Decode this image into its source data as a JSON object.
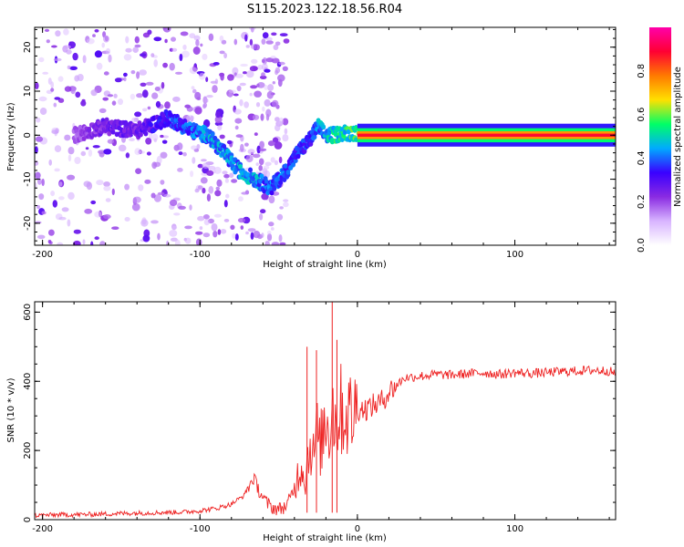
{
  "figure_title": "S115.2023.122.18.56.R04",
  "colormap": [
    "#ffffff",
    "#d8b4ff",
    "#8a2be2",
    "#3a00ff",
    "#00aaff",
    "#00ff66",
    "#ffe000",
    "#ff7a00",
    "#ff0033",
    "#ff00aa"
  ],
  "line_color": "#ee2222",
  "chart_data": [
    {
      "type": "heatmap",
      "title": "",
      "xlabel": "Height of straight line (km)",
      "ylabel": "Frequency (Hz)",
      "xlim": [
        -205,
        164
      ],
      "ylim": [
        -25,
        24.5
      ],
      "x_ticks": [
        -200,
        -100,
        0,
        100
      ],
      "y_ticks": [
        -20,
        -10,
        0,
        10,
        20
      ],
      "colorbar": {
        "label": "Normalized spectral amplitude",
        "range": [
          0.0,
          1.0
        ],
        "ticks": [
          "0.0",
          "0.2",
          "0.4",
          "0.6",
          "0.8"
        ]
      },
      "ridge": {
        "x": [
          -205,
          -180,
          -160,
          -140,
          -120,
          -105,
          -95,
          -85,
          -75,
          -65,
          -55,
          -45,
          -38,
          -30,
          -25,
          -20,
          -15,
          -10,
          -5,
          0,
          10,
          50,
          100,
          164
        ],
        "y": [
          -2,
          0,
          2,
          1,
          4,
          1,
          0,
          -4,
          -8,
          -10,
          -12,
          -8,
          -4,
          -1,
          2,
          0,
          0,
          0.5,
          0.5,
          0.5,
          0,
          0,
          0,
          0
        ],
        "peak": [
          0.2,
          0.2,
          0.3,
          0.3,
          0.4,
          0.45,
          0.5,
          0.5,
          0.5,
          0.5,
          0.45,
          0.45,
          0.4,
          0.4,
          0.5,
          0.5,
          0.6,
          0.6,
          0.6,
          0.65,
          0.8,
          0.85,
          0.88,
          0.75
        ]
      }
    },
    {
      "type": "line",
      "title": "",
      "xlabel": "Height of straight line (km)",
      "ylabel": "SNR (10 * v/v)",
      "xlim": [
        -205,
        164
      ],
      "ylim": [
        0,
        630
      ],
      "x_ticks": [
        -200,
        -100,
        0,
        100
      ],
      "y_ticks": [
        0,
        200,
        400,
        600
      ],
      "series": [
        {
          "x": [
            -205,
            -190,
            -170,
            -150,
            -130,
            -110,
            -100,
            -90,
            -80,
            -72,
            -66,
            -62,
            -58,
            -54,
            -50,
            -45,
            -40,
            -36,
            -33,
            -30,
            -28,
            -26,
            -24,
            -22,
            -20,
            -18,
            -16,
            -14,
            -12,
            -10,
            -8,
            -6,
            -4,
            -2,
            0,
            5,
            10,
            15,
            20,
            25,
            30,
            40,
            50,
            60,
            70,
            80,
            90,
            100,
            110,
            120,
            130,
            140,
            150,
            160,
            164
          ],
          "values": [
            12,
            14,
            15,
            18,
            20,
            22,
            26,
            32,
            45,
            70,
            120,
            80,
            50,
            35,
            30,
            40,
            90,
            160,
            120,
            230,
            180,
            260,
            210,
            240,
            300,
            260,
            350,
            280,
            300,
            320,
            300,
            310,
            300,
            310,
            320,
            320,
            330,
            340,
            370,
            390,
            410,
            415,
            420,
            418,
            422,
            425,
            420,
            425,
            423,
            425,
            428,
            430,
            432,
            430,
            420
          ]
        }
      ],
      "spikes": [
        {
          "x": -32,
          "value": 500
        },
        {
          "x": -26,
          "value": 490
        },
        {
          "x": -16,
          "value": 630
        },
        {
          "x": -13,
          "value": 520
        }
      ]
    }
  ]
}
